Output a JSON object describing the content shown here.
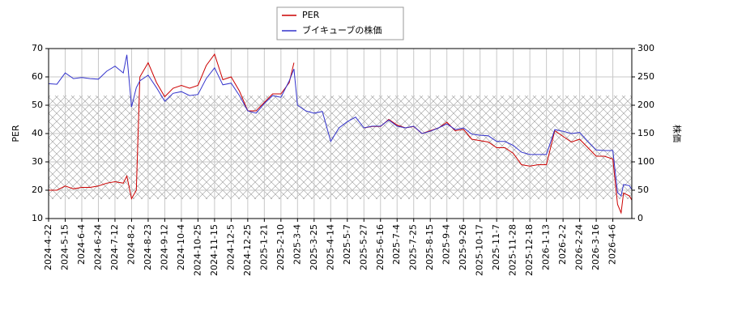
{
  "chart_data": {
    "type": "line",
    "ylabel": "PER",
    "y2label": "株価",
    "x": [
      0,
      7,
      14,
      21,
      28,
      35,
      42,
      49,
      56,
      63,
      66,
      70,
      74,
      77,
      84,
      91,
      98,
      105,
      112,
      119,
      126,
      133,
      140,
      147,
      154,
      161,
      168,
      175,
      182,
      189,
      196,
      203,
      207,
      210,
      217,
      224,
      231,
      238,
      245,
      252,
      259,
      266,
      273,
      280,
      287,
      294,
      301,
      308,
      315,
      322,
      329,
      336,
      343,
      350,
      357,
      364,
      371,
      378,
      385,
      392,
      399,
      406,
      413,
      420,
      427,
      434,
      441,
      448,
      455,
      462,
      469,
      476,
      480,
      483,
      485,
      490,
      492
    ],
    "series": [
      {
        "name": "PER",
        "color": "#cc0000",
        "axis": "y",
        "values": [
          20,
          20,
          21.5,
          20.5,
          21,
          21,
          21.5,
          22.5,
          23,
          22.5,
          25,
          17,
          20,
          60,
          65,
          58,
          53,
          56,
          57,
          56,
          57,
          64,
          68,
          59,
          60,
          55,
          48,
          48,
          51,
          54,
          54,
          58,
          65,
          null,
          null,
          null,
          null,
          null,
          null,
          null,
          null,
          42,
          42.5,
          42.5,
          45,
          43,
          42,
          42.5,
          40,
          41,
          42,
          44,
          41,
          41.5,
          38,
          37.5,
          37,
          35,
          35,
          33,
          29,
          28.5,
          29,
          29,
          41,
          39,
          37,
          38,
          35,
          32,
          32,
          31,
          15,
          12,
          19,
          18,
          16.5
        ]
      },
      {
        "name": "ブイキューブの株価",
        "color": "#3333cc",
        "axis": "y2",
        "values": [
          238,
          237,
          257,
          247,
          249,
          247,
          246,
          260,
          269,
          257,
          289,
          197,
          231,
          243,
          253,
          231,
          207,
          221,
          224,
          217,
          219,
          247,
          266,
          236,
          239,
          217,
          190,
          186,
          203,
          217,
          214,
          243,
          264,
          200,
          190,
          186,
          189,
          136,
          160,
          171,
          179,
          160,
          163,
          163,
          174,
          163,
          160,
          163,
          150,
          154,
          160,
          167,
          157,
          160,
          149,
          147,
          146,
          136,
          136,
          129,
          117,
          113,
          113,
          113,
          157,
          154,
          150,
          152,
          136,
          121,
          120,
          120,
          46,
          40,
          60,
          58,
          51
        ]
      }
    ],
    "xlim": [
      0,
      492
    ],
    "xticks": [
      {
        "value": 0,
        "label": "2024-4-22"
      },
      {
        "value": 14,
        "label": "2024-5-15"
      },
      {
        "value": 28,
        "label": "2024-6-4"
      },
      {
        "value": 42,
        "label": "2024-6-24"
      },
      {
        "value": 56,
        "label": "2024-7-12"
      },
      {
        "value": 70,
        "label": "2024-8-2"
      },
      {
        "value": 84,
        "label": "2024-8-23"
      },
      {
        "value": 98,
        "label": "2024-9-12"
      },
      {
        "value": 112,
        "label": "2024-10-4"
      },
      {
        "value": 126,
        "label": "2024-10-25"
      },
      {
        "value": 140,
        "label": "2024-11-15"
      },
      {
        "value": 154,
        "label": "2024-12-5"
      },
      {
        "value": 168,
        "label": "2024-12-25"
      },
      {
        "value": 182,
        "label": "2025-1-21"
      },
      {
        "value": 196,
        "label": "2025-2-10"
      },
      {
        "value": 210,
        "label": "2025-3-4"
      },
      {
        "value": 224,
        "label": "2025-3-25"
      },
      {
        "value": 238,
        "label": "2025-4-14"
      },
      {
        "value": 252,
        "label": "2025-5-7"
      },
      {
        "value": 266,
        "label": "2025-5-27"
      },
      {
        "value": 280,
        "label": "2025-6-16"
      },
      {
        "value": 294,
        "label": "2025-7-4"
      },
      {
        "value": 308,
        "label": "2025-7-25"
      },
      {
        "value": 322,
        "label": "2025-8-15"
      },
      {
        "value": 336,
        "label": "2025-9-4"
      },
      {
        "value": 350,
        "label": "2025-9-26"
      },
      {
        "value": 364,
        "label": "2025-10-17"
      },
      {
        "value": 378,
        "label": "2025-11-7"
      },
      {
        "value": 392,
        "label": "2025-11-28"
      },
      {
        "value": 406,
        "label": "2025-12-18"
      },
      {
        "value": 420,
        "label": "2026-1-13"
      },
      {
        "value": 434,
        "label": "2026-2-2"
      },
      {
        "value": 448,
        "label": "2026-2-24"
      },
      {
        "value": 462,
        "label": "2026-3-16"
      },
      {
        "value": 476,
        "label": "2026-4-6"
      }
    ],
    "ylim": [
      10,
      70
    ],
    "yticks": [
      10,
      20,
      30,
      40,
      50,
      60,
      70
    ],
    "y2lim": [
      0,
      300
    ],
    "y2ticks": [
      0,
      50,
      100,
      150,
      200,
      250,
      300
    ],
    "grid": true,
    "legend": "upper center"
  }
}
